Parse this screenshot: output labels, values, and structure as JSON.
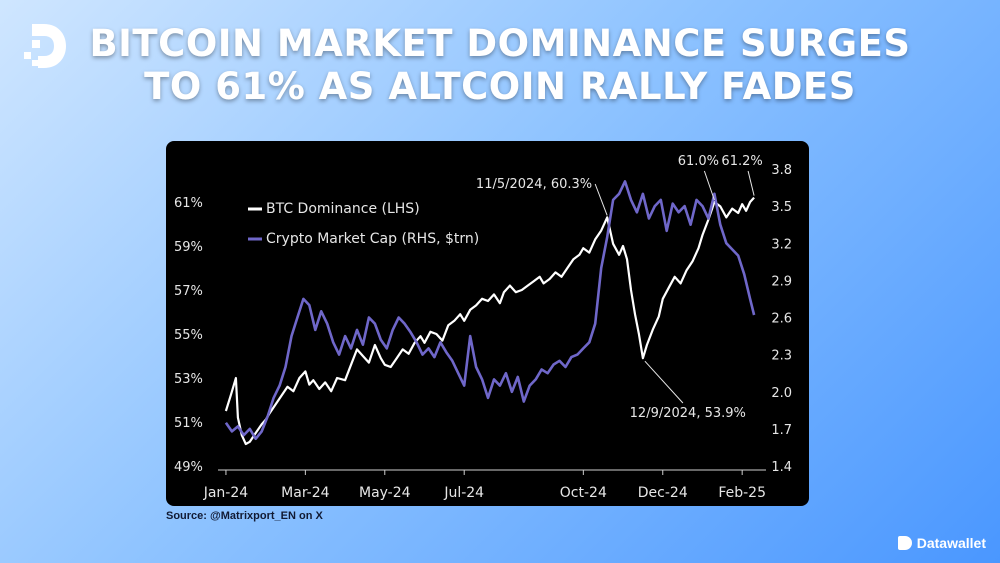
{
  "header": {
    "title_line1": "BITCOIN MARKET DOMINANCE SURGES",
    "title_line2": "TO 61% AS ALTCOIN RALLY FADES"
  },
  "footer": {
    "source": "Source: @Matrixport_EN on X",
    "brand": "Datawallet"
  },
  "colors": {
    "btc_line": "#ffffff",
    "mcap_line": "#6f67c9",
    "chart_bg": "#000000",
    "text": "#e6e6e6"
  },
  "chart_data": {
    "type": "line",
    "x_ticks": [
      "Jan-24",
      "Mar-24",
      "May-24",
      "Jul-24",
      "Oct-24",
      "Dec-24",
      "Feb-25"
    ],
    "x_tick_values": [
      0,
      2,
      4,
      6,
      9,
      11,
      13
    ],
    "xlim": [
      -0.2,
      13.6
    ],
    "y_left": {
      "ticks": [
        "49%",
        "51%",
        "53%",
        "55%",
        "57%",
        "59%",
        "61%"
      ],
      "tick_values": [
        49,
        51,
        53,
        55,
        57,
        59,
        61
      ],
      "lim": [
        49,
        62.5
      ]
    },
    "y_right": {
      "ticks": [
        "1.4",
        "1.7",
        "2.0",
        "2.3",
        "2.6",
        "2.9",
        "3.2",
        "3.5",
        "3.8"
      ],
      "tick_values": [
        1.4,
        1.7,
        2.0,
        2.3,
        2.6,
        2.9,
        3.2,
        3.5,
        3.8
      ],
      "lim": [
        1.4,
        3.8
      ]
    },
    "legend_position": "top-left",
    "grid": false,
    "series": [
      {
        "name": "BTC Dominance (LHS)",
        "axis": "left",
        "color": "#ffffff",
        "x": [
          0,
          0.12,
          0.25,
          0.3,
          0.4,
          0.5,
          0.6,
          0.75,
          0.9,
          1.0,
          1.1,
          1.25,
          1.4,
          1.55,
          1.7,
          1.85,
          2.0,
          2.1,
          2.2,
          2.35,
          2.5,
          2.65,
          2.8,
          3.0,
          3.15,
          3.3,
          3.45,
          3.6,
          3.75,
          3.9,
          4.0,
          4.15,
          4.3,
          4.45,
          4.6,
          4.75,
          4.9,
          5.0,
          5.15,
          5.3,
          5.45,
          5.6,
          5.75,
          5.9,
          6.0,
          6.15,
          6.3,
          6.45,
          6.6,
          6.75,
          6.9,
          7.0,
          7.15,
          7.3,
          7.45,
          7.6,
          7.75,
          7.9,
          8.0,
          8.15,
          8.3,
          8.45,
          8.6,
          8.75,
          8.9,
          9.0,
          9.15,
          9.3,
          9.45,
          9.6,
          9.75,
          9.9,
          10.0,
          10.1,
          10.2,
          10.3,
          10.4,
          10.5,
          10.6,
          10.75,
          10.9,
          11.0,
          11.15,
          11.3,
          11.45,
          11.6,
          11.75,
          11.9,
          12.0,
          12.15,
          12.3,
          12.45,
          12.6,
          12.75,
          12.9,
          13.0,
          13.1,
          13.2,
          13.3
        ],
        "y": [
          51.5,
          52.2,
          53.0,
          51.2,
          50.4,
          50.0,
          50.1,
          50.5,
          50.9,
          51.1,
          51.4,
          51.8,
          52.2,
          52.6,
          52.4,
          53.0,
          53.3,
          52.7,
          52.9,
          52.5,
          52.8,
          52.4,
          53.0,
          52.9,
          53.6,
          54.3,
          54.0,
          53.7,
          54.5,
          53.9,
          53.6,
          53.5,
          53.9,
          54.3,
          54.1,
          54.6,
          54.9,
          54.6,
          55.1,
          55.0,
          54.7,
          55.4,
          55.6,
          55.9,
          55.6,
          56.1,
          56.3,
          56.6,
          56.5,
          56.8,
          56.4,
          56.9,
          57.2,
          56.9,
          57.0,
          57.2,
          57.4,
          57.6,
          57.3,
          57.5,
          57.8,
          57.6,
          58.0,
          58.4,
          58.6,
          58.9,
          58.7,
          59.3,
          59.7,
          60.3,
          59.1,
          58.6,
          59.0,
          58.4,
          57.0,
          55.9,
          55.0,
          53.9,
          54.5,
          55.2,
          55.8,
          56.6,
          57.1,
          57.6,
          57.3,
          57.9,
          58.3,
          58.9,
          59.5,
          60.2,
          61.0,
          60.8,
          60.3,
          60.7,
          60.5,
          60.9,
          60.6,
          61.0,
          61.2
        ]
      },
      {
        "name": "Crypto Market Cap (RHS, $trn)",
        "axis": "right",
        "color": "#6f67c9",
        "x": [
          0,
          0.15,
          0.3,
          0.45,
          0.6,
          0.75,
          0.9,
          1.05,
          1.2,
          1.35,
          1.5,
          1.65,
          1.8,
          1.95,
          2.1,
          2.25,
          2.4,
          2.55,
          2.7,
          2.85,
          3.0,
          3.15,
          3.3,
          3.45,
          3.6,
          3.75,
          3.9,
          4.05,
          4.2,
          4.35,
          4.5,
          4.65,
          4.8,
          4.95,
          5.1,
          5.25,
          5.4,
          5.55,
          5.7,
          5.85,
          6.0,
          6.15,
          6.3,
          6.45,
          6.6,
          6.75,
          6.9,
          7.05,
          7.2,
          7.35,
          7.5,
          7.65,
          7.8,
          7.95,
          8.1,
          8.25,
          8.4,
          8.55,
          8.7,
          8.85,
          9.0,
          9.15,
          9.3,
          9.45,
          9.6,
          9.75,
          9.9,
          10.05,
          10.2,
          10.35,
          10.5,
          10.65,
          10.8,
          10.95,
          11.1,
          11.25,
          11.4,
          11.55,
          11.7,
          11.85,
          12.0,
          12.15,
          12.3,
          12.45,
          12.6,
          12.75,
          12.9,
          13.05,
          13.2,
          13.3
        ],
        "y": [
          1.75,
          1.68,
          1.72,
          1.65,
          1.7,
          1.62,
          1.68,
          1.8,
          1.95,
          2.05,
          2.2,
          2.45,
          2.6,
          2.75,
          2.7,
          2.5,
          2.65,
          2.55,
          2.4,
          2.3,
          2.45,
          2.35,
          2.5,
          2.38,
          2.6,
          2.55,
          2.42,
          2.35,
          2.5,
          2.6,
          2.55,
          2.48,
          2.4,
          2.3,
          2.35,
          2.28,
          2.4,
          2.32,
          2.25,
          2.15,
          2.05,
          2.45,
          2.2,
          2.1,
          1.95,
          2.1,
          2.05,
          2.15,
          2.0,
          2.12,
          1.92,
          2.05,
          2.1,
          2.18,
          2.15,
          2.22,
          2.25,
          2.2,
          2.28,
          2.3,
          2.35,
          2.4,
          2.55,
          3.0,
          3.25,
          3.55,
          3.6,
          3.7,
          3.55,
          3.45,
          3.6,
          3.4,
          3.5,
          3.55,
          3.3,
          3.52,
          3.45,
          3.5,
          3.35,
          3.55,
          3.5,
          3.4,
          3.6,
          3.35,
          3.2,
          3.15,
          3.1,
          2.95,
          2.75,
          2.62
        ]
      }
    ],
    "annotations": [
      {
        "text": "11/5/2024, 60.3%",
        "x": 9.6,
        "y": 60.3,
        "axis": "left"
      },
      {
        "text": "12/9/2024, 53.9%",
        "x": 10.5,
        "y": 53.9,
        "axis": "left"
      },
      {
        "text": "61.0%",
        "x": 12.3,
        "y": 61.0,
        "axis": "left"
      },
      {
        "text": "61.2%",
        "x": 13.3,
        "y": 61.2,
        "axis": "left"
      }
    ]
  }
}
